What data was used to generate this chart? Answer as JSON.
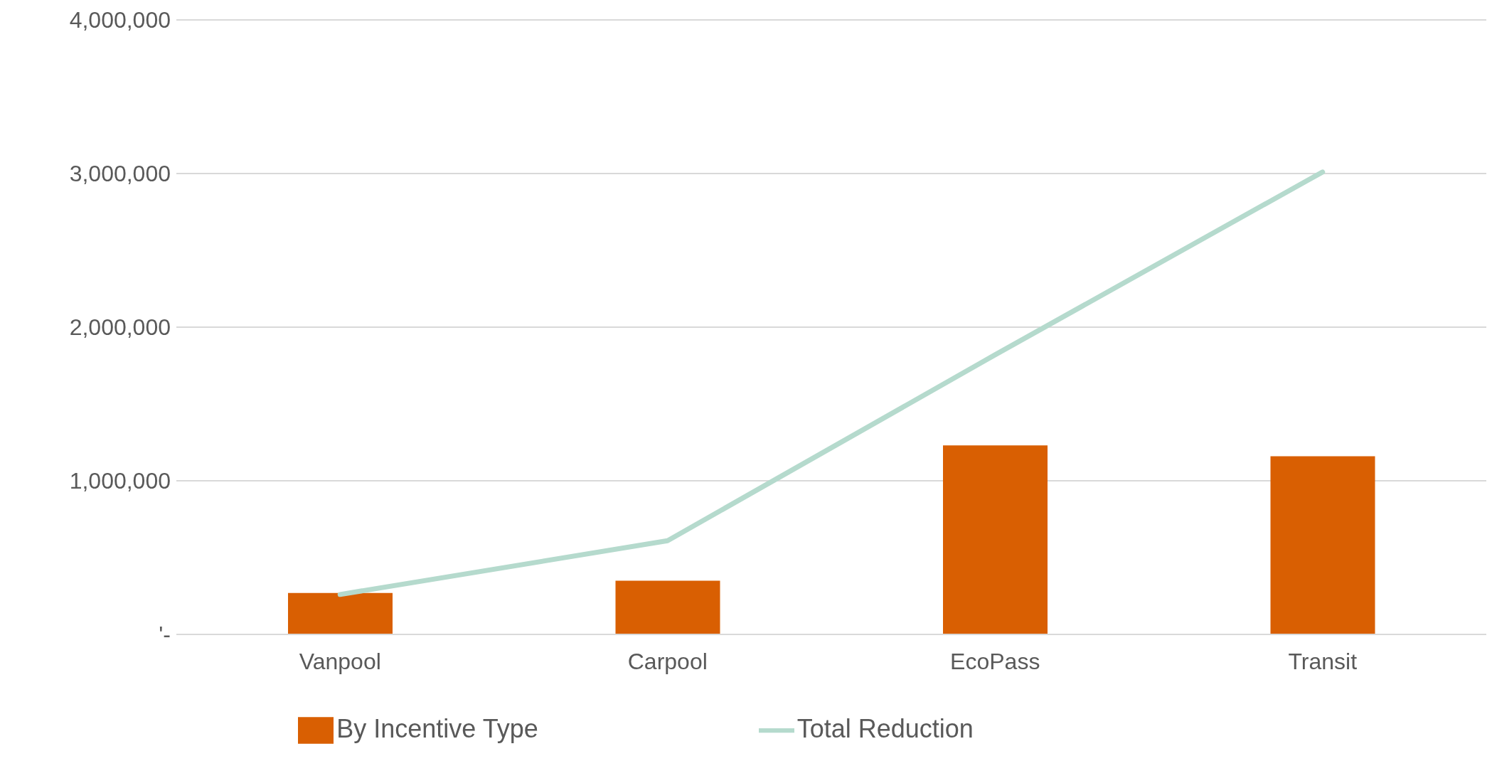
{
  "chart_data": {
    "type": "bar",
    "categories": [
      "Vanpool",
      "Carpool",
      "EcoPass",
      "Transit"
    ],
    "series": [
      {
        "name": "By Incentive Type",
        "color": "#d95f02",
        "values": [
          270000,
          350000,
          1230000,
          1160000
        ]
      },
      {
        "name": "Total Reduction",
        "type": "line",
        "color": "#b5dacd",
        "values": [
          260000,
          610000,
          1820000,
          3010000
        ]
      }
    ],
    "ylim": [
      0,
      4000000
    ],
    "yticks": [
      {
        "value": 0,
        "label": "'-"
      },
      {
        "value": 1000000,
        "label": "1,000,000"
      },
      {
        "value": 2000000,
        "label": "2,000,000"
      },
      {
        "value": 3000000,
        "label": "3,000,000"
      },
      {
        "value": 4000000,
        "label": "4,000,000"
      }
    ],
    "grid": "y",
    "legend": "bottom",
    "marker": "none"
  }
}
